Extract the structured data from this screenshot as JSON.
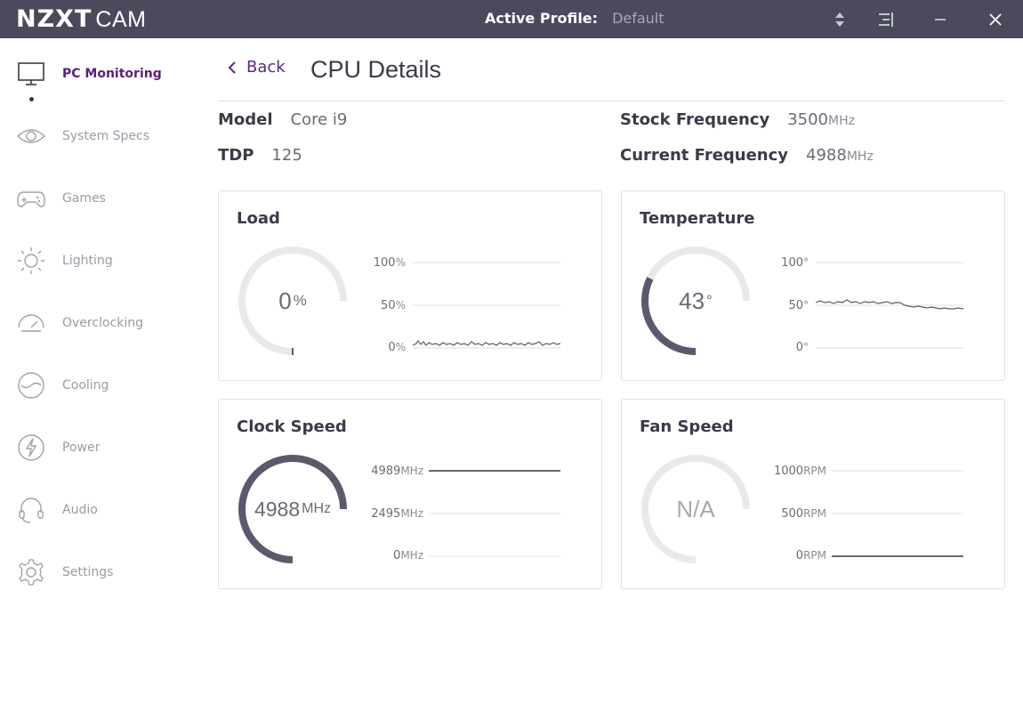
{
  "app": {
    "brand_main": "NZXT",
    "brand_sub": "CAM"
  },
  "titlebar": {
    "profile_label": "Active Profile:",
    "profile_value": "Default"
  },
  "sidebar": {
    "items": [
      {
        "label": "PC Monitoring",
        "icon": "monitor-icon",
        "active": true
      },
      {
        "label": "System Specs",
        "icon": "eye-icon"
      },
      {
        "label": "Games",
        "icon": "gamepad-icon"
      },
      {
        "label": "Lighting",
        "icon": "sun-icon"
      },
      {
        "label": "Overclocking",
        "icon": "speedometer-icon"
      },
      {
        "label": "Cooling",
        "icon": "cooling-icon"
      },
      {
        "label": "Power",
        "icon": "lightning-icon"
      },
      {
        "label": "Audio",
        "icon": "headset-icon"
      },
      {
        "label": "Settings",
        "icon": "gear-icon"
      }
    ]
  },
  "header": {
    "back_label": "Back",
    "title": "CPU Details"
  },
  "specs": {
    "model_label": "Model",
    "model_value": "Core i9",
    "tdp_label": "TDP",
    "tdp_value": "125",
    "stock_label": "Stock Frequency",
    "stock_value": "3500",
    "stock_unit": "MHz",
    "current_label": "Current Frequency",
    "current_value": "4988",
    "current_unit": "MHz"
  },
  "cards": {
    "load": {
      "title": "Load",
      "value": "0",
      "unit": "%",
      "fraction": 0.0,
      "ticks": [
        {
          "v": "100",
          "u": "%"
        },
        {
          "v": "50",
          "u": "%"
        },
        {
          "v": "0",
          "u": "%"
        }
      ]
    },
    "temperature": {
      "title": "Temperature",
      "value": "43",
      "unit": "°",
      "fraction": 0.43,
      "ticks": [
        {
          "v": "100",
          "u": "°"
        },
        {
          "v": "50",
          "u": "°"
        },
        {
          "v": "0",
          "u": "°"
        }
      ]
    },
    "clock": {
      "title": "Clock Speed",
      "value": "4988",
      "unit": "MHz",
      "fraction": 1.0,
      "ticks": [
        {
          "v": "4989",
          "u": "MHz"
        },
        {
          "v": "2495",
          "u": "MHz"
        },
        {
          "v": "0",
          "u": "MHz"
        }
      ]
    },
    "fan": {
      "title": "Fan Speed",
      "value": "N/A",
      "unit": "",
      "fraction": 0.0,
      "ticks": [
        {
          "v": "1000",
          "u": "RPM"
        },
        {
          "v": "500",
          "u": "RPM"
        },
        {
          "v": "0",
          "u": "RPM"
        }
      ]
    }
  },
  "colors": {
    "titlebar": "#4a4a5c",
    "accent": "#5a1f7a",
    "gauge_track": "#e8e9ec",
    "gauge_fill": "#5a5a6e"
  }
}
